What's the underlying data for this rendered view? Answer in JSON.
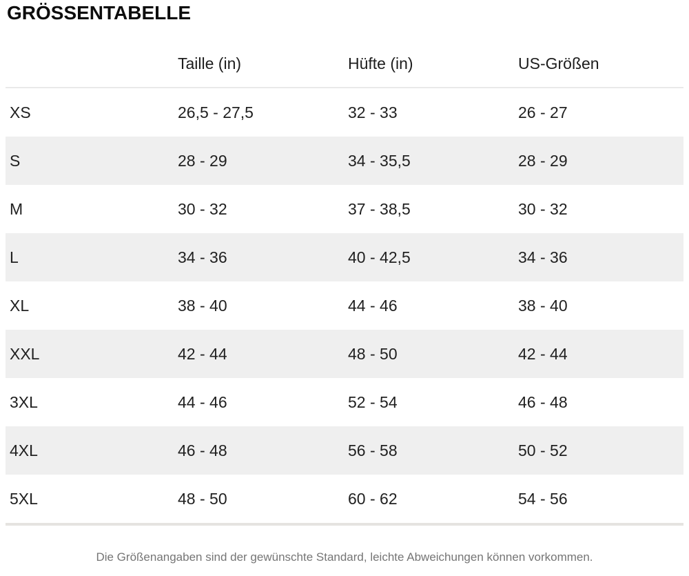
{
  "page": {
    "title": "GRÖSSENTABELLE",
    "footnote": "Die Größenangaben sind der gewünschte Standard, leichte Abweichungen können vorkommen."
  },
  "table": {
    "columns": [
      "",
      "Taille (in)",
      "Hüfte (in)",
      "US-Größen"
    ],
    "rows": [
      {
        "size": "XS",
        "taille": "26,5 - 27,5",
        "huefte": "32 - 33",
        "us": "26 - 27"
      },
      {
        "size": "S",
        "taille": "28 - 29",
        "huefte": "34 - 35,5",
        "us": "28 - 29"
      },
      {
        "size": "M",
        "taille": "30 - 32",
        "huefte": "37 - 38,5",
        "us": "30 - 32"
      },
      {
        "size": "L",
        "taille": "34 - 36",
        "huefte": "40 - 42,5",
        "us": "34 - 36"
      },
      {
        "size": "XL",
        "taille": "38 - 40",
        "huefte": "44 - 46",
        "us": "38 - 40"
      },
      {
        "size": "XXL",
        "taille": "42 - 44",
        "huefte": "48 - 50",
        "us": "42 - 44"
      },
      {
        "size": "3XL",
        "taille": "44 - 46",
        "huefte": "52 - 54",
        "us": "46 - 48"
      },
      {
        "size": "4XL",
        "taille": "46 - 48",
        "huefte": "56 - 58",
        "us": "50 - 52"
      },
      {
        "size": "5XL",
        "taille": "48 - 50",
        "huefte": "60 - 62",
        "us": "54 - 56"
      }
    ]
  },
  "colors": {
    "text": "#212121",
    "row_alt": "#efefef",
    "header_border": "#e9e9e9",
    "bottom_border": "#e5e3e0",
    "footnote": "#757575"
  }
}
